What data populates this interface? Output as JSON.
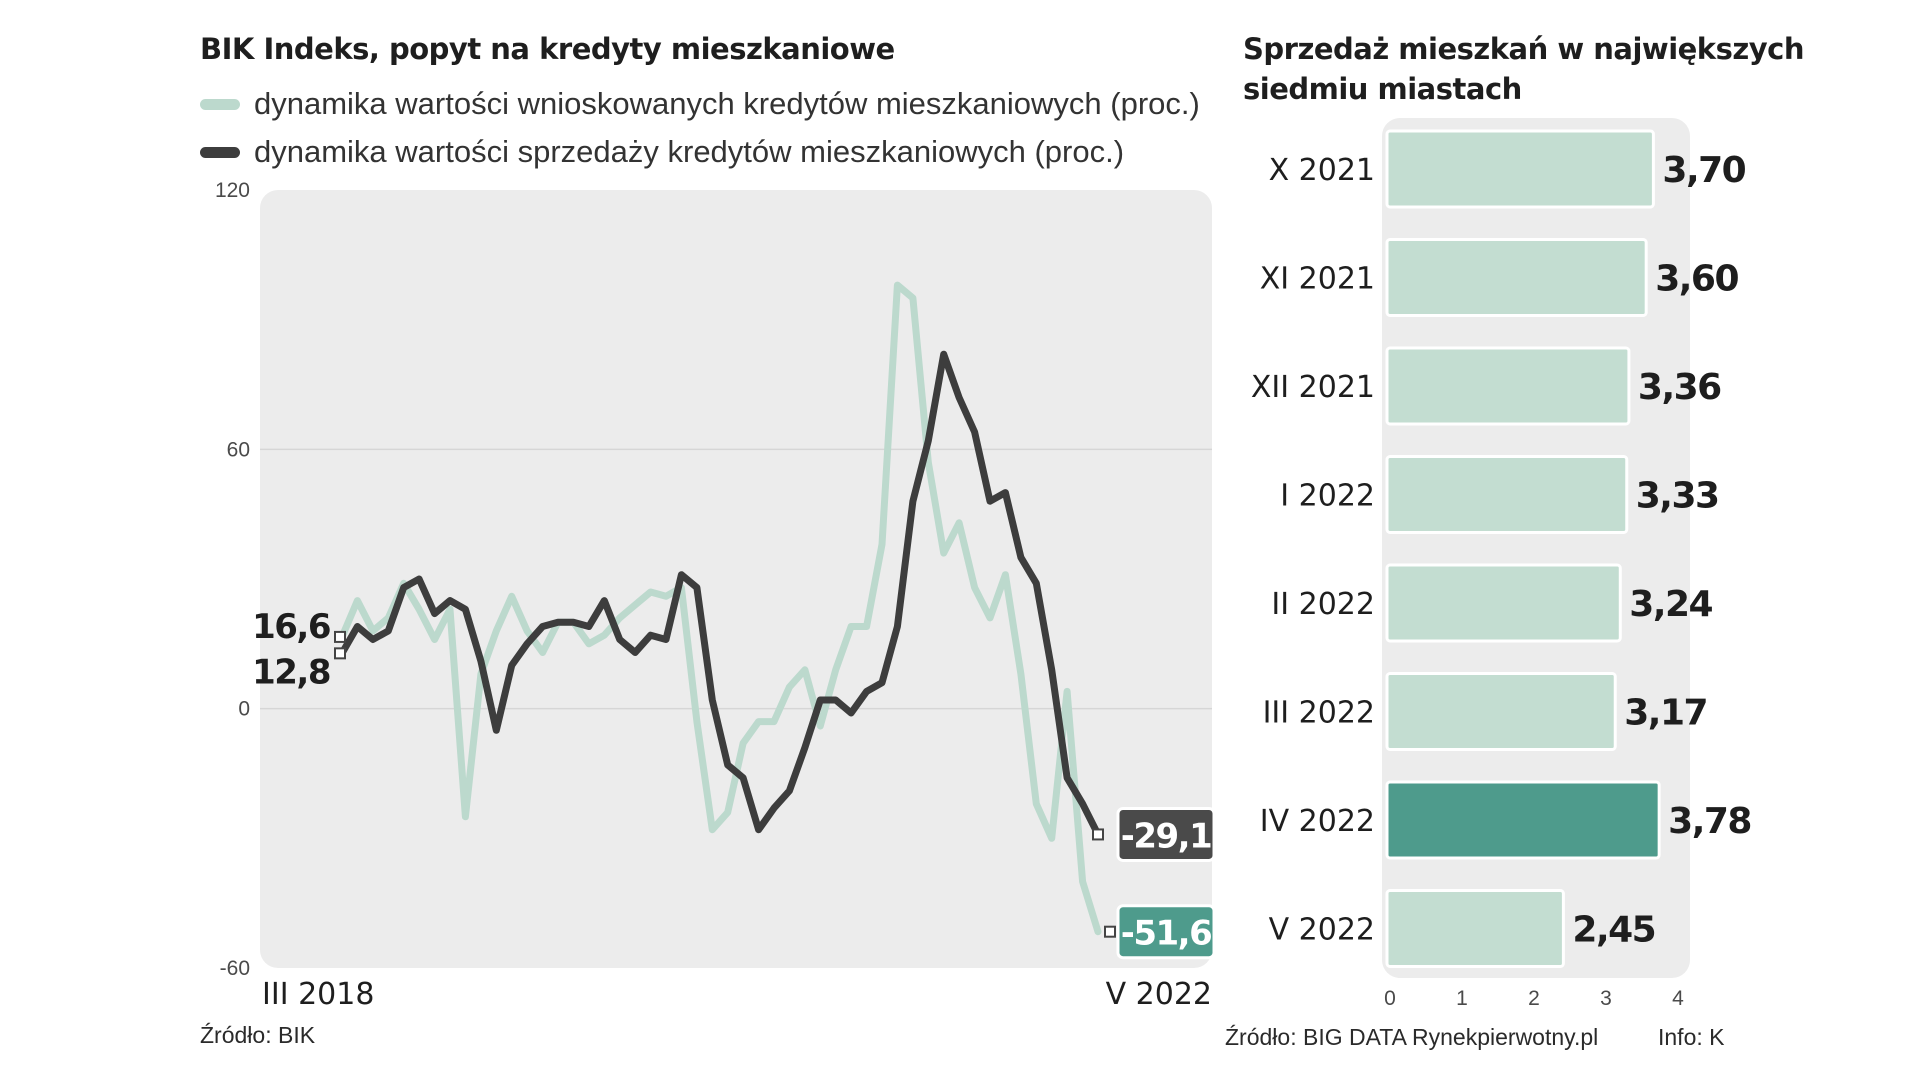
{
  "colors": {
    "applications": "#bcd9cd",
    "sales": "#3d3d3d",
    "bar": "#c3ddd1",
    "bar_highlight": "#4e9b8c",
    "panel": "#ececec",
    "label_dark_bg": "#4a4a4a",
    "label_green_bg": "#4e9b8c"
  },
  "left": {
    "title": "BIK Indeks, popyt na kredyty mieszkaniowe",
    "source": "Źródło: BIK",
    "legend": [
      {
        "label": "dynamika wartości wnioskowanych kredytów mieszkaniowych (proc.)",
        "color": "#bcd9cd"
      },
      {
        "label": "dynamika wartości sprzedaży kredytów mieszkaniowych (proc.)",
        "color": "#3d3d3d"
      }
    ]
  },
  "right": {
    "title_line1": "Sprzedaż mieszkań w największych",
    "title_line2": "siedmiu miastach",
    "source": "Źródło: BIG DATA Rynekpierwotny.pl",
    "info": "Info: K"
  },
  "chart_data": [
    {
      "type": "line",
      "title": "BIK Indeks, popyt na kredyty mieszkaniowe",
      "ylim": [
        -60,
        120
      ],
      "yticks": [
        "120",
        "60",
        "0",
        "-60"
      ],
      "x_start_label": "III 2018",
      "x_end_label": "V 2022",
      "grid": true,
      "start_labels": [
        "16,6",
        "12,8"
      ],
      "end_labels": {
        "sales": "-29,1",
        "applications": "-51,6"
      },
      "series": [
        {
          "name": "dynamika wartości wnioskowanych kredytów mieszkaniowych (proc.)",
          "key": "applications",
          "values": [
            16.6,
            25,
            18,
            21,
            29,
            23,
            16,
            23,
            -25,
            8,
            18,
            26,
            18,
            13,
            20,
            20,
            15,
            17,
            21,
            24,
            27,
            26,
            28,
            -3,
            -28,
            -24,
            -8,
            -3,
            -3,
            5,
            9,
            -4,
            9,
            19,
            19,
            38,
            98,
            95,
            57,
            36,
            43,
            28,
            21,
            31,
            8,
            -22,
            -30,
            4,
            -40,
            -51.6
          ]
        },
        {
          "name": "dynamika wartości sprzedaży kredytów mieszkaniowych (proc.)",
          "key": "sales",
          "values": [
            12.8,
            19,
            16,
            18,
            28,
            30,
            22,
            25,
            23,
            11,
            -5,
            10,
            15,
            19,
            20,
            20,
            19,
            25,
            16,
            13,
            17,
            16,
            31,
            28,
            2,
            -13,
            -16,
            -28,
            -23,
            -19,
            -9,
            2,
            2,
            -1,
            4,
            6,
            19,
            48,
            62,
            82,
            72,
            64,
            48,
            50,
            35,
            29,
            9,
            -16,
            -22,
            -29.1
          ]
        }
      ]
    },
    {
      "type": "bar",
      "orientation": "horizontal",
      "title": "Sprzedaż mieszkań w największych siedmiu miastach",
      "categories": [
        "X 2021",
        "XI 2021",
        "XII 2021",
        "I 2022",
        "II 2022",
        "III 2022",
        "IV 2022",
        "V 2022"
      ],
      "values": [
        3.7,
        3.6,
        3.36,
        3.33,
        3.24,
        3.17,
        3.78,
        2.45
      ],
      "value_labels": [
        "3,70",
        "3,60",
        "3,36",
        "3,33",
        "3,24",
        "3,17",
        "3,78",
        "2,45"
      ],
      "highlight_index": 6,
      "xlim": [
        0,
        4
      ],
      "xticks": [
        "0",
        "1",
        "2",
        "3",
        "4"
      ]
    }
  ]
}
